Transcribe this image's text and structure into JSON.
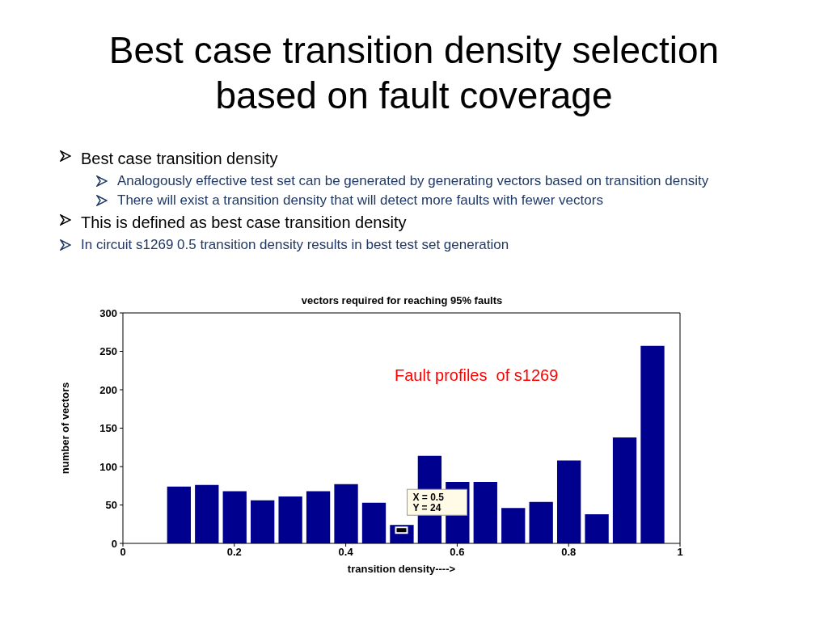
{
  "chart_data": {
    "type": "bar",
    "title": "Best case transition density selection based on fault coverage",
    "subtitle": "vectors required for reaching 95% faults",
    "xlabel": "transition density---->",
    "ylabel": "number of vectors",
    "x": [
      0.1,
      0.15,
      0.2,
      0.25,
      0.3,
      0.35,
      0.4,
      0.45,
      0.5,
      0.55,
      0.6,
      0.65,
      0.7,
      0.75,
      0.8,
      0.85,
      0.9,
      0.95
    ],
    "values": [
      74,
      76,
      68,
      56,
      61,
      68,
      77,
      53,
      24,
      114,
      80,
      80,
      46,
      54,
      108,
      38,
      138,
      257
    ],
    "color": "#00008f",
    "xlim": [
      0,
      1
    ],
    "xticks": [
      0,
      0.2,
      0.4,
      0.6,
      0.8,
      1
    ],
    "ylim": [
      0,
      300
    ],
    "yticks": [
      0,
      50,
      100,
      150,
      200,
      250,
      300
    ],
    "annotations": [
      "Best case transition density",
      "Analogously effective test set can be generated by generating vectors based on transition density",
      "There will exist a transition density that will detect more faults with fewer vectors",
      "This is defined as best case transition density",
      "In circuit s1269  0.5 transition density  results in best test set generation",
      "Fault profiles  of s1269",
      {
        "text": "X = 0.5\nY = 24",
        "x": 0.5,
        "y": 24
      }
    ]
  }
}
